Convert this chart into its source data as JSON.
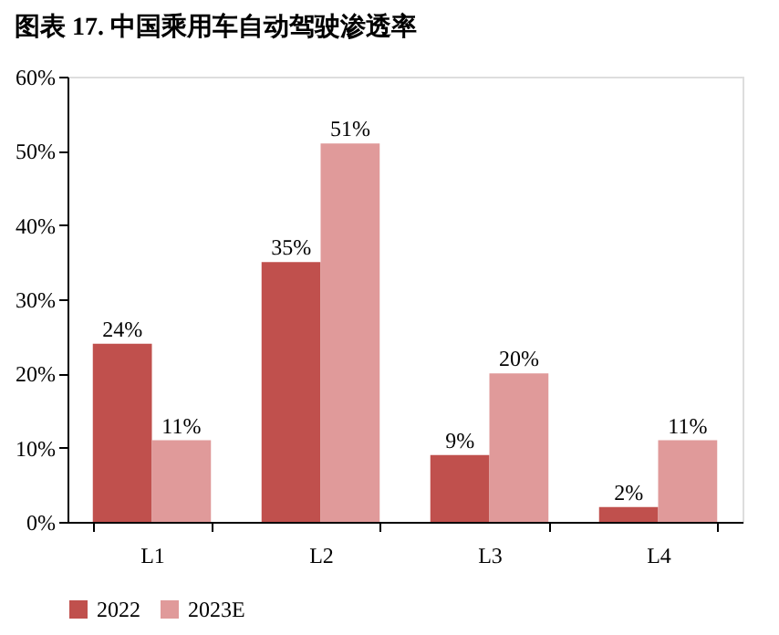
{
  "chart_data": {
    "type": "bar",
    "title": "图表 17. 中国乘用车自动驾驶渗透率",
    "categories": [
      "L1",
      "L2",
      "L3",
      "L4"
    ],
    "series": [
      {
        "name": "2022",
        "color": "#c0504d",
        "values": [
          24,
          35,
          9,
          2
        ],
        "value_labels": [
          "24%",
          "35%",
          "9%",
          "2%"
        ]
      },
      {
        "name": "2023E",
        "color": "#e09a9a",
        "values": [
          11,
          51,
          20,
          11
        ],
        "value_labels": [
          "11%",
          "51%",
          "20%",
          "11%"
        ]
      }
    ],
    "ylim": [
      0,
      60
    ],
    "yticks": [
      {
        "value": 0,
        "label": "0%"
      },
      {
        "value": 10,
        "label": "10%"
      },
      {
        "value": 20,
        "label": "20%"
      },
      {
        "value": 30,
        "label": "30%"
      },
      {
        "value": 40,
        "label": "40%"
      },
      {
        "value": 50,
        "label": "50%"
      },
      {
        "value": 60,
        "label": "60%"
      }
    ],
    "grid": false,
    "legend": "bottom"
  }
}
